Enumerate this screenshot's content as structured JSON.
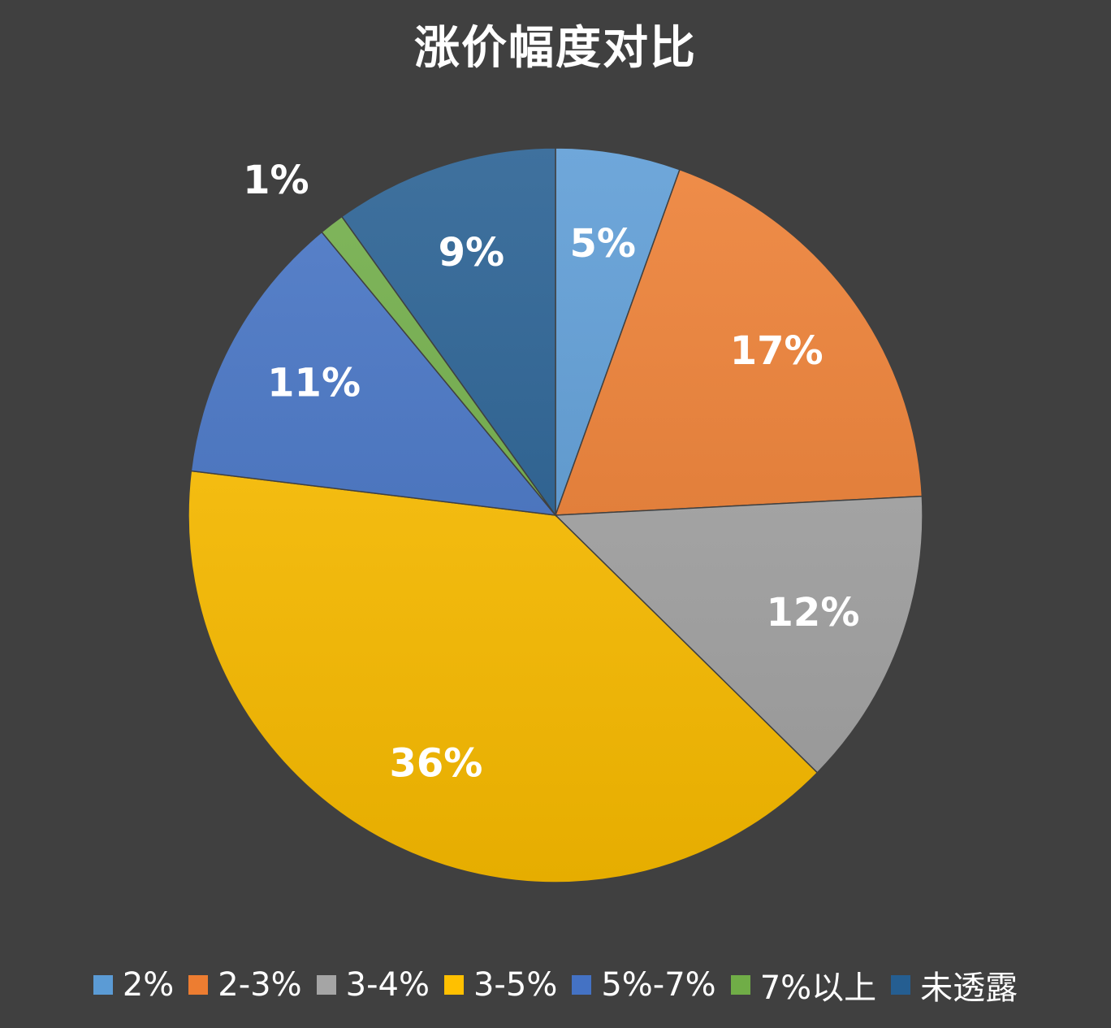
{
  "chart_data": {
    "type": "pie",
    "title": "涨价幅度对比",
    "categories": [
      "2%",
      "2-3%",
      "3-4%",
      "3-5%",
      "5%-7%",
      "7%以上",
      "未透露"
    ],
    "values": [
      5,
      17,
      12,
      36,
      11,
      1,
      9
    ],
    "value_labels": [
      "5%",
      "17%",
      "12%",
      "36%",
      "11%",
      "1%",
      "9%"
    ],
    "colors": [
      "#5B9BD5",
      "#ED7D31",
      "#A5A5A5",
      "#FFC000",
      "#4472C4",
      "#70AD47",
      "#255E91"
    ],
    "start_angle_deg": 0,
    "direction": "clockwise",
    "legend_position": "bottom"
  }
}
